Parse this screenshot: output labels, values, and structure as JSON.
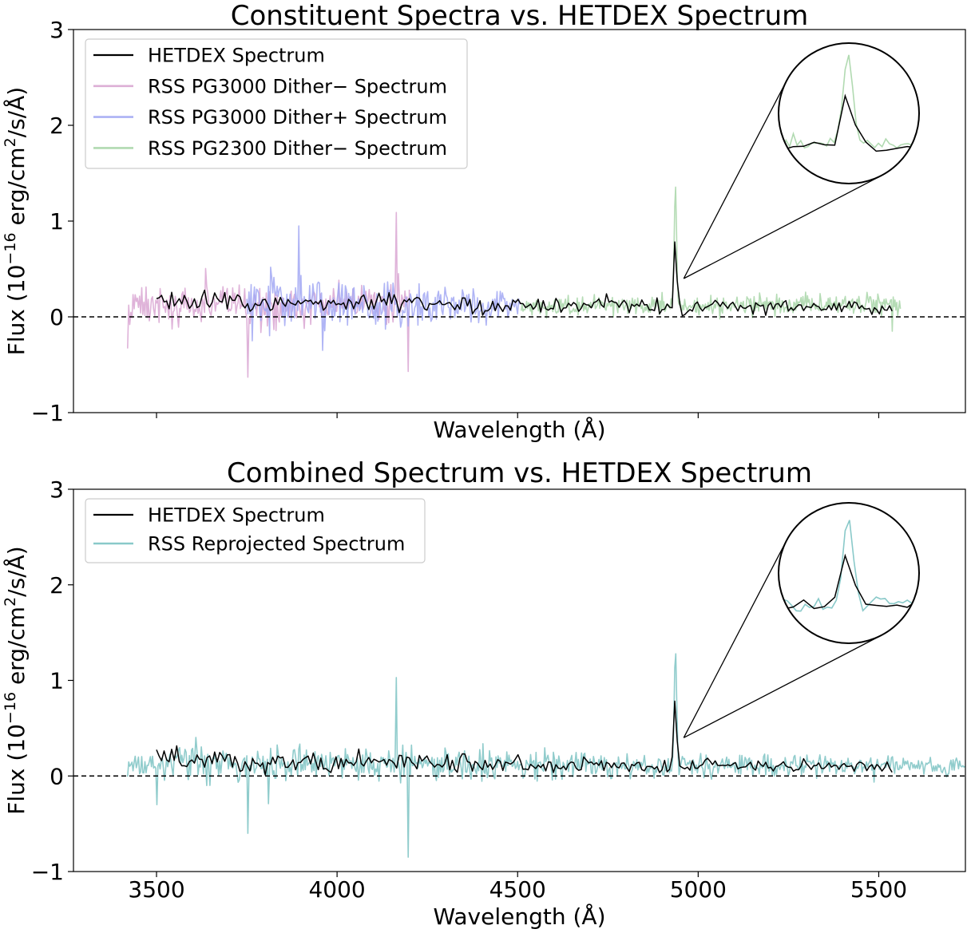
{
  "chart_data": [
    {
      "type": "line",
      "title": "Constituent Spectra vs. HETDEX Spectrum",
      "xlabel": "Wavelength (Å)",
      "ylabel": "Flux (10−16 erg/cm2/s/Å)",
      "ylabel_parts": {
        "pre": "Flux (10",
        "exp1": "−16",
        "mid": " erg/cm",
        "exp2": "2",
        "post": "/s/Å)"
      },
      "xlim": [
        3270,
        5740
      ],
      "ylim": [
        -1,
        3
      ],
      "xticks": [
        3500,
        4000,
        4500,
        5000,
        5500
      ],
      "show_xtick_labels": false,
      "yticks": [
        -1,
        0,
        1,
        2,
        3
      ],
      "ytick_labels": [
        "−1",
        "0",
        "1",
        "2",
        "3"
      ],
      "zero_line": {
        "y": 0,
        "style": "dashed"
      },
      "legend_position": "upper-left",
      "emission_line": {
        "wavelength": 4937,
        "hetdex_peak": 0.92
      },
      "inset": {
        "type": "zoom-circle",
        "wavelength_range": [
          4890,
          4985
        ],
        "anchor_point": {
          "x": 4960,
          "y": 0.4
        }
      },
      "series": [
        {
          "name": "HETDEX Spectrum",
          "color": "#000000",
          "x_range": [
            3500,
            5540
          ],
          "step": 7,
          "noise_sigma": [
            0.06,
            0.03
          ],
          "baseline": [
            0.16,
            0.09
          ],
          "peak_value": 0.92
        },
        {
          "name": "RSS PG3000 Dither− Spectrum",
          "color": "#d9a6d2",
          "x_range": [
            3420,
            4200
          ],
          "step": 3,
          "noise_sigma": [
            0.12,
            0.09
          ],
          "baseline": [
            0.12,
            0.14
          ],
          "extremes": [
            {
              "x": 3420,
              "y": -0.33
            },
            {
              "x": 3753,
              "y": -0.63
            },
            {
              "x": 4163,
              "y": 1.09
            },
            {
              "x": 4197,
              "y": -0.57
            }
          ]
        },
        {
          "name": "RSS PG3000 Dither+ Spectrum",
          "color": "#a2a8f3",
          "x_range": [
            3750,
            4510
          ],
          "step": 3,
          "noise_sigma": [
            0.16,
            0.07
          ],
          "baseline": [
            0.18,
            0.1
          ],
          "extremes": [
            {
              "x": 3895,
              "y": 0.95
            },
            {
              "x": 3765,
              "y": -0.25
            },
            {
              "x": 3960,
              "y": -0.35
            }
          ]
        },
        {
          "name": "RSS PG2300 Dither− Spectrum",
          "color": "#a8d6a8",
          "x_range": [
            4510,
            5560
          ],
          "step": 2.5,
          "noise_sigma": [
            0.05,
            0.05
          ],
          "baseline": [
            0.1,
            0.14
          ],
          "peak_value": 1.37,
          "extremes": [
            {
              "x": 5538,
              "y": -0.15
            }
          ]
        }
      ]
    },
    {
      "type": "line",
      "title": "Combined Spectrum vs. HETDEX Spectrum",
      "xlabel": "Wavelength (Å)",
      "ylabel": "Flux (10−16 erg/cm2/s/Å)",
      "ylabel_parts": {
        "pre": "Flux (10",
        "exp1": "−16",
        "mid": " erg/cm",
        "exp2": "2",
        "post": "/s/Å)"
      },
      "xlim": [
        3270,
        5740
      ],
      "ylim": [
        -1,
        3
      ],
      "xticks": [
        3500,
        4000,
        4500,
        5000,
        5500
      ],
      "xtick_labels": [
        "3500",
        "4000",
        "4500",
        "5000",
        "5500"
      ],
      "show_xtick_labels": true,
      "yticks": [
        -1,
        0,
        1,
        2,
        3
      ],
      "ytick_labels": [
        "−1",
        "0",
        "1",
        "2",
        "3"
      ],
      "zero_line": {
        "y": 0,
        "style": "dashed"
      },
      "legend_position": "upper-left",
      "emission_line": {
        "wavelength": 4937,
        "hetdex_peak": 0.92
      },
      "inset": {
        "type": "zoom-circle",
        "wavelength_range": [
          4890,
          4985
        ],
        "anchor_point": {
          "x": 4960,
          "y": 0.4
        }
      },
      "series": [
        {
          "name": "HETDEX Spectrum",
          "color": "#000000",
          "x_range": [
            3500,
            5540
          ],
          "step": 7,
          "noise_sigma": [
            0.06,
            0.03
          ],
          "baseline": [
            0.16,
            0.09
          ],
          "peak_value": 0.92
        },
        {
          "name": "RSS Reprojected Spectrum",
          "color": "#7cc3c3",
          "x_range": [
            3420,
            5740
          ],
          "step": 3,
          "noise_sigma": [
            0.11,
            0.045
          ],
          "baseline": [
            0.13,
            0.1
          ],
          "peak_value": 1.34,
          "extremes": [
            {
              "x": 3753,
              "y": -0.6
            },
            {
              "x": 3810,
              "y": -0.29
            },
            {
              "x": 4163,
              "y": 1.03
            },
            {
              "x": 4197,
              "y": -0.85
            },
            {
              "x": 3500,
              "y": -0.3
            }
          ]
        }
      ]
    }
  ]
}
